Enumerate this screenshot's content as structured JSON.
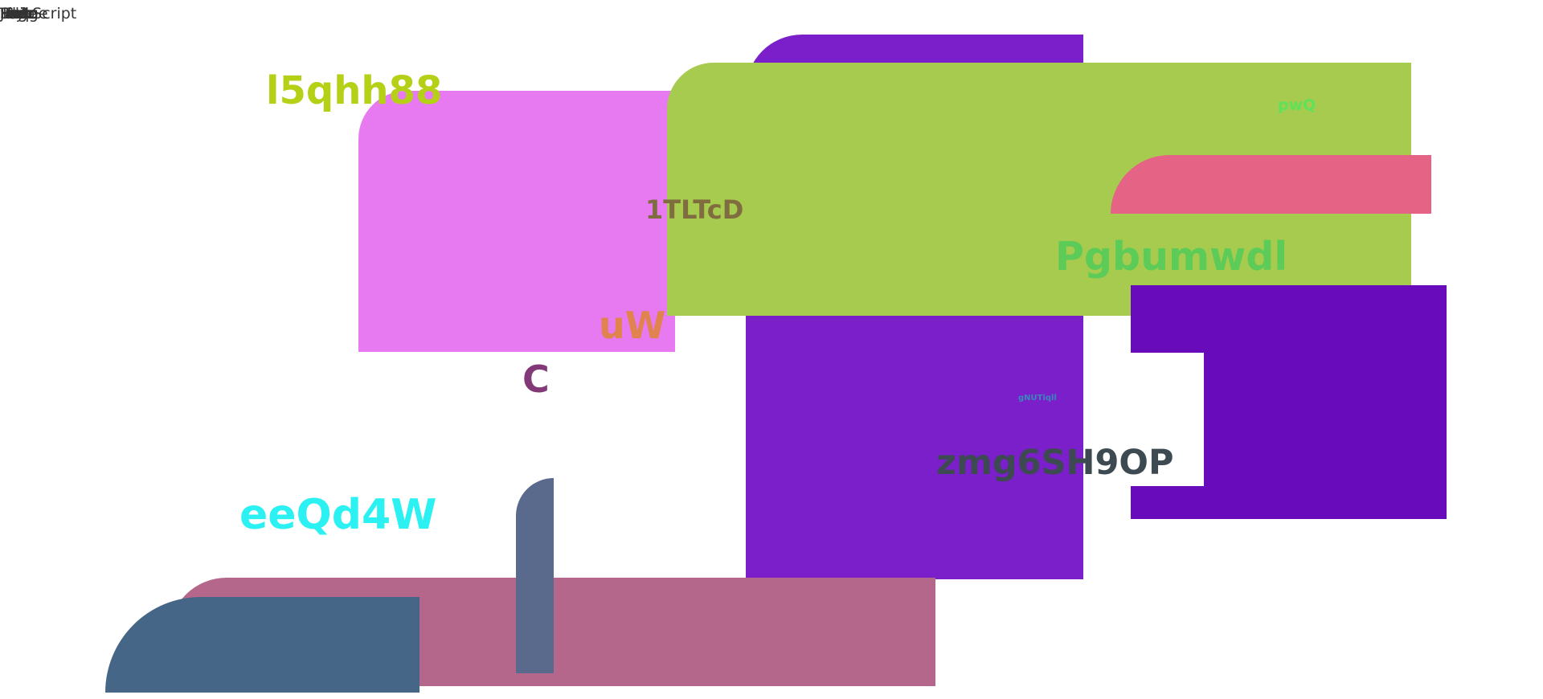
{
  "corner_texts": [
    "JavaScript",
    "Image",
    "Page",
    "Form",
    "Help",
    "File",
    "Edit",
    "Style",
    "Link",
    "Text"
  ],
  "labels": {
    "l5qhh88": "l5qhh88",
    "tltcd": "1TLTcD",
    "pwq": "pwQ",
    "pgbumwdl": "Pgbumwdl",
    "uw": "uW",
    "c": "C",
    "gnutiql": "gNUTiqll",
    "zmg": "zmg6SH9OP",
    "eeqd4w": "eeQd4W"
  },
  "colors": {
    "purple_block": "#7b1fcb",
    "pink_block": "#e77af0",
    "green_block": "#a7cb4f",
    "red_pill": "#e56385",
    "violet_block": "#680cbb",
    "mauve_bar": "#b4678b",
    "blue_block": "#466688",
    "slate_pill": "#596a8c",
    "l5qhh88_text": "#b5d016",
    "tltcd_text": "#7f6d3f",
    "pwq_text": "#5de25a",
    "pgbumwdl_text": "#5ccb57",
    "uw_text": "#e0834e",
    "c_text": "#833877",
    "gnutiql_text": "#3a88bb",
    "zmg_text": "#3d4a52",
    "eeqd4w_text": "#2bf1f2"
  }
}
